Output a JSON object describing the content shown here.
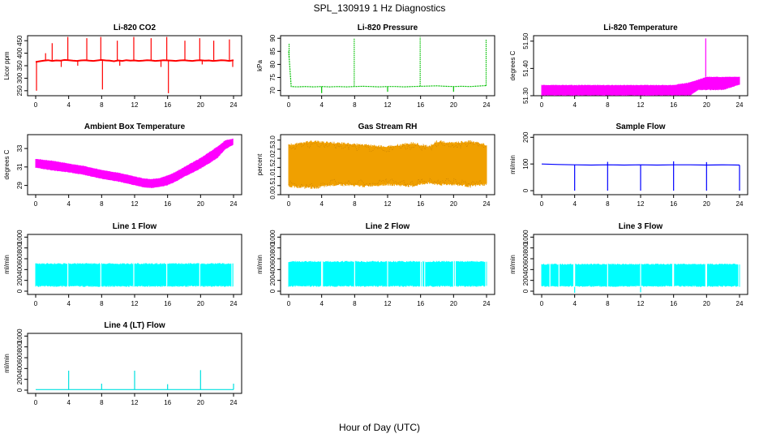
{
  "figure": {
    "title": "SPL_130919  1 Hz Diagnostics",
    "xlabel": "Hour of Day (UTC)"
  },
  "chart_data": [
    {
      "id": "co2",
      "type": "line",
      "title": "Li-820 CO2",
      "ylabel": "Licor ppm",
      "color": "#ff0000",
      "xlim": [
        0,
        24
      ],
      "xticks": [
        "0",
        "4",
        "8",
        "12",
        "16",
        "20",
        "24"
      ],
      "ylim": [
        230,
        470
      ],
      "yticks": [
        250,
        300,
        350,
        400,
        450
      ],
      "ytick_labels": [
        "250",
        "300",
        "350",
        "400",
        "450"
      ],
      "series": {
        "x": [
          0,
          0.5,
          1,
          1.5,
          2,
          2.5,
          3,
          3.5,
          4,
          4.5,
          5,
          5.5,
          6,
          6.5,
          7,
          7.5,
          8,
          8.5,
          9,
          9.5,
          10,
          10.5,
          11,
          11.5,
          12,
          12.5,
          13,
          13.5,
          14,
          14.5,
          15,
          15.5,
          16,
          16.5,
          17,
          17.5,
          18,
          18.5,
          19,
          19.5,
          20,
          20.5,
          21,
          21.5,
          22,
          22.5,
          23,
          23.5,
          24
        ],
        "y": [
          365,
          368,
          370,
          372,
          369,
          371,
          370,
          373,
          372,
          370,
          369,
          371,
          372,
          370,
          369,
          371,
          373,
          371,
          370,
          368,
          371,
          369,
          372,
          370,
          371,
          369,
          370,
          372,
          371,
          369,
          370,
          372,
          371,
          370,
          369,
          371,
          372,
          370,
          369,
          371,
          372,
          370,
          371,
          369,
          370,
          372,
          371,
          369,
          372
        ]
      },
      "spikes": [
        {
          "x": 0.1,
          "y": 250
        },
        {
          "x": 1.2,
          "y": 400
        },
        {
          "x": 2.0,
          "y": 440
        },
        {
          "x": 3.9,
          "y": 465
        },
        {
          "x": 6.2,
          "y": 460
        },
        {
          "x": 7.9,
          "y": 465
        },
        {
          "x": 8.1,
          "y": 255
        },
        {
          "x": 9.9,
          "y": 450
        },
        {
          "x": 11.9,
          "y": 465
        },
        {
          "x": 14.0,
          "y": 460
        },
        {
          "x": 15.9,
          "y": 465
        },
        {
          "x": 16.1,
          "y": 240
        },
        {
          "x": 18.1,
          "y": 450
        },
        {
          "x": 19.9,
          "y": 460
        },
        {
          "x": 21.6,
          "y": 450
        },
        {
          "x": 23.5,
          "y": 455
        }
      ],
      "dips": [
        {
          "x": 3.1,
          "y": 345
        },
        {
          "x": 5.1,
          "y": 350
        },
        {
          "x": 10.2,
          "y": 350
        },
        {
          "x": 15.2,
          "y": 345
        },
        {
          "x": 20.2,
          "y": 355
        },
        {
          "x": 23.9,
          "y": 345
        }
      ]
    },
    {
      "id": "pressure",
      "type": "line",
      "title": "Li-820 Pressure",
      "ylabel": "kPa",
      "color": "#00c000",
      "xlim": [
        0,
        24
      ],
      "xticks": [
        "0",
        "4",
        "8",
        "12",
        "16",
        "20",
        "24"
      ],
      "ylim": [
        68,
        91
      ],
      "yticks": [
        70,
        75,
        80,
        85,
        90
      ],
      "ytick_labels": [
        "70",
        "75",
        "80",
        "85",
        "90"
      ],
      "series": {
        "x": [
          0,
          0.3,
          1,
          2,
          3,
          4,
          5,
          6,
          7,
          8,
          9,
          10,
          11,
          12,
          13,
          14,
          15,
          16,
          17,
          18,
          19,
          20,
          21,
          22,
          23,
          24
        ],
        "y": [
          85,
          71.5,
          71.4,
          71.5,
          71.4,
          71.5,
          71.4,
          71.5,
          71.4,
          71.5,
          71.6,
          71.5,
          71.4,
          71.5,
          71.5,
          71.4,
          71.5,
          71.6,
          71.7,
          71.8,
          71.6,
          71.5,
          71.6,
          71.5,
          71.7,
          71.9
        ]
      },
      "spikes": [
        {
          "x": 0.05,
          "y": 88
        },
        {
          "x": 7.95,
          "y": 90
        },
        {
          "x": 15.95,
          "y": 90.5
        },
        {
          "x": 23.95,
          "y": 89.5
        }
      ],
      "dips": [
        {
          "x": 4.0,
          "y": 69
        },
        {
          "x": 12.0,
          "y": 69.5
        },
        {
          "x": 20.0,
          "y": 69.5
        }
      ]
    },
    {
      "id": "licor_temp",
      "type": "band",
      "title": "Li-820 Temperature",
      "ylabel": "degrees C",
      "color": "#ff00ff",
      "xlim": [
        0,
        24
      ],
      "xticks": [
        "0",
        "4",
        "8",
        "12",
        "16",
        "20",
        "24"
      ],
      "ylim": [
        51.3,
        51.52
      ],
      "yticks": [
        51.3,
        51.4,
        51.5
      ],
      "ytick_labels": [
        "51.30",
        "51.40",
        "51.50"
      ],
      "band": {
        "x": [
          0,
          6,
          10,
          14,
          16,
          18,
          19,
          20,
          22,
          24
        ],
        "low": [
          51.3,
          51.3,
          51.3,
          51.3,
          51.3,
          51.3,
          51.32,
          51.32,
          51.32,
          51.34
        ],
        "high": [
          51.34,
          51.34,
          51.34,
          51.34,
          51.34,
          51.35,
          51.36,
          51.37,
          51.37,
          51.37
        ]
      },
      "spikes": [
        {
          "x": 19.9,
          "y": 51.51
        }
      ]
    },
    {
      "id": "box_temp",
      "type": "band",
      "title": "Ambient Box Temperature",
      "ylabel": "degrees C",
      "color": "#ff00ff",
      "xlim": [
        0,
        24
      ],
      "xticks": [
        "0",
        "4",
        "8",
        "12",
        "16",
        "20",
        "24"
      ],
      "ylim": [
        28,
        34.5
      ],
      "yticks": [
        29,
        31,
        33
      ],
      "ytick_labels": [
        "29",
        "31",
        "33"
      ],
      "band": {
        "x": [
          0,
          2,
          4,
          6,
          8,
          10,
          12,
          13,
          14,
          15,
          16,
          17,
          18,
          20,
          22,
          23,
          24
        ],
        "low": [
          30.9,
          30.6,
          30.4,
          30.1,
          29.7,
          29.4,
          29.0,
          28.8,
          28.7,
          28.8,
          29.0,
          29.4,
          29.9,
          30.8,
          31.9,
          32.9,
          33.4
        ],
        "high": [
          31.9,
          31.7,
          31.4,
          31.1,
          30.7,
          30.4,
          30.0,
          29.8,
          29.7,
          29.8,
          30.1,
          30.5,
          31.0,
          32.0,
          33.2,
          33.9,
          34.1
        ]
      }
    },
    {
      "id": "rh",
      "type": "band",
      "title": "Gas Stream RH",
      "ylabel": "percent",
      "color": "#f0a000",
      "xlim": [
        0,
        24
      ],
      "xticks": [
        "0",
        "4",
        "8",
        "12",
        "16",
        "20",
        "24"
      ],
      "ylim": [
        0,
        3.3
      ],
      "yticks": [
        0,
        0.5,
        1,
        1.5,
        2,
        2.5,
        3
      ],
      "ytick_labels": [
        "0.0",
        "0.5",
        "1.0",
        "1.5",
        "2.0",
        "2.5",
        "3.0"
      ],
      "band": {
        "x": [
          0,
          3,
          6,
          9,
          12,
          15,
          17,
          18,
          20,
          22,
          24
        ],
        "low": [
          0.4,
          0.3,
          0.5,
          0.4,
          0.5,
          0.4,
          0.6,
          0.5,
          0.5,
          0.4,
          0.5
        ],
        "high": [
          2.8,
          3.0,
          2.9,
          2.8,
          2.7,
          2.9,
          2.7,
          3.0,
          2.9,
          3.0,
          2.8
        ]
      }
    },
    {
      "id": "sample_flow",
      "type": "line",
      "title": "Sample Flow",
      "ylabel": "ml/min",
      "color": "#0000ff",
      "xlim": [
        0,
        24
      ],
      "xticks": [
        "0",
        "4",
        "8",
        "12",
        "16",
        "20",
        "24"
      ],
      "ylim": [
        -15,
        210
      ],
      "yticks": [
        0,
        100,
        200
      ],
      "ytick_labels": [
        "0",
        "100",
        "200"
      ],
      "series": {
        "x": [
          0,
          2,
          4,
          6,
          8,
          10,
          12,
          14,
          16,
          18,
          20,
          22,
          24
        ],
        "y": [
          100,
          98,
          97,
          96,
          97,
          96,
          97,
          96,
          97,
          97,
          96,
          97,
          96
        ]
      },
      "dips": [
        {
          "x": 4.0,
          "y": 0
        },
        {
          "x": 8.0,
          "y": 0
        },
        {
          "x": 12.0,
          "y": 0
        },
        {
          "x": 16.0,
          "y": 0
        },
        {
          "x": 20.0,
          "y": 0
        },
        {
          "x": 24.0,
          "y": 0
        }
      ],
      "spikes": [
        {
          "x": 8.0,
          "y": 108
        },
        {
          "x": 16.0,
          "y": 110
        },
        {
          "x": 20.0,
          "y": 107
        }
      ]
    },
    {
      "id": "line1",
      "type": "band",
      "title": "Line 1 Flow",
      "ylabel": "ml/min",
      "color": "#00ffff",
      "xlim": [
        0,
        24
      ],
      "xticks": [
        "0",
        "4",
        "8",
        "12",
        "16",
        "20",
        "24"
      ],
      "ylim": [
        -60,
        1050
      ],
      "yticks": [
        0,
        200,
        400,
        600,
        800,
        1000
      ],
      "ytick_labels": [
        "0",
        "200",
        "400",
        "600",
        "800",
        "1000"
      ],
      "band": {
        "x": [
          0,
          24
        ],
        "low": [
          80,
          80
        ],
        "high": [
          520,
          520
        ]
      },
      "gaps": [
        3.9,
        7.9,
        11.9,
        15.9,
        19.9,
        23.8
      ]
    },
    {
      "id": "line2",
      "type": "band",
      "title": "Line 2 Flow",
      "ylabel": "ml/min",
      "color": "#00ffff",
      "xlim": [
        0,
        24
      ],
      "xticks": [
        "0",
        "4",
        "8",
        "12",
        "16",
        "20",
        "24"
      ],
      "ylim": [
        -60,
        1050
      ],
      "yticks": [
        0,
        200,
        400,
        600,
        800,
        1000
      ],
      "ytick_labels": [
        "0",
        "200",
        "400",
        "600",
        "800",
        "1000"
      ],
      "band": {
        "x": [
          0,
          24
        ],
        "low": [
          80,
          80
        ],
        "high": [
          560,
          560
        ]
      },
      "gaps": [
        4.0,
        4.1,
        8.0,
        12.0,
        16.0,
        16.2,
        16.5,
        20.0,
        20.2,
        23.9
      ]
    },
    {
      "id": "line3",
      "type": "band",
      "title": "Line 3 Flow",
      "ylabel": "ml/min",
      "color": "#00ffff",
      "xlim": [
        0,
        24
      ],
      "xticks": [
        "0",
        "4",
        "8",
        "12",
        "16",
        "20",
        "24"
      ],
      "ylim": [
        -60,
        1050
      ],
      "yticks": [
        0,
        200,
        400,
        600,
        800,
        1000
      ],
      "ytick_labels": [
        "0",
        "200",
        "400",
        "600",
        "800",
        "1000"
      ],
      "band": {
        "x": [
          0,
          24
        ],
        "low": [
          80,
          80
        ],
        "high": [
          510,
          510
        ]
      },
      "gaps": [
        1.0,
        2.1,
        3.9,
        4.0,
        8.0,
        12.0,
        15.9,
        16.0,
        19.9,
        20.0,
        23.9
      ],
      "dips": [
        {
          "x": 4.0,
          "y": -30
        },
        {
          "x": 12.0,
          "y": -20
        }
      ]
    },
    {
      "id": "line4",
      "type": "line",
      "title": "Line 4 (LT) Flow",
      "ylabel": "ml/min",
      "color": "#00e0e0",
      "xlim": [
        0,
        24
      ],
      "xticks": [
        "0",
        "4",
        "8",
        "12",
        "16",
        "20",
        "24"
      ],
      "ylim": [
        -60,
        1050
      ],
      "yticks": [
        0,
        200,
        400,
        600,
        800,
        1000
      ],
      "ytick_labels": [
        "0",
        "200",
        "400",
        "600",
        "800",
        "1000"
      ],
      "series": {
        "x": [
          0,
          24
        ],
        "y": [
          10,
          10
        ]
      },
      "spikes": [
        {
          "x": 4.0,
          "y": 360
        },
        {
          "x": 8.0,
          "y": 120
        },
        {
          "x": 12.0,
          "y": 360
        },
        {
          "x": 16.0,
          "y": 110
        },
        {
          "x": 20.0,
          "y": 370
        },
        {
          "x": 24.0,
          "y": 120
        }
      ]
    }
  ]
}
